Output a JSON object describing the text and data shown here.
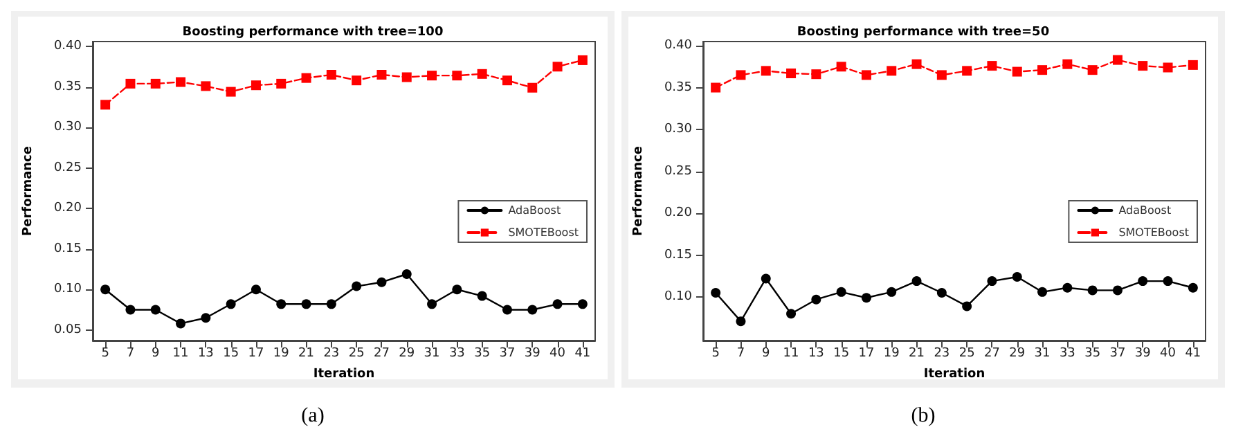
{
  "chart_data": [
    {
      "type": "line",
      "title": "Boosting performance with tree=100",
      "xlabel": "Iteration",
      "ylabel": "Performance",
      "annotations": [
        "(a)"
      ],
      "categories": [
        "5",
        "7",
        "9",
        "11",
        "13",
        "15",
        "17",
        "19",
        "21",
        "23",
        "25",
        "27",
        "29",
        "31",
        "33",
        "35",
        "37",
        "39",
        "40",
        "41"
      ],
      "ylim": [
        0.037,
        0.406
      ],
      "yticks": [
        0.05,
        {
          "value": 0.1,
          "label": "0.10"
        },
        0.15,
        {
          "value": 0.2,
          "label": "0.20"
        },
        0.25,
        {
          "value": 0.3,
          "label": "0.30"
        },
        0.35,
        {
          "value": 0.4,
          "label": "0.40"
        }
      ],
      "grid": false,
      "legend": "right",
      "series": [
        {
          "name": "AdaBoost",
          "color": "#000000",
          "marker": "circle",
          "line_style": "solid",
          "values": [
            0.1,
            0.075,
            0.075,
            0.058,
            0.065,
            0.082,
            0.1,
            0.082,
            0.082,
            0.082,
            0.104,
            0.109,
            0.119,
            0.082,
            0.1,
            0.092,
            0.075,
            0.075,
            0.082,
            0.082
          ]
        },
        {
          "name": "SMOTEBoost",
          "color": "#ff0000",
          "marker": "square",
          "line_style": "dashed",
          "values": [
            0.328,
            0.354,
            0.354,
            0.356,
            0.351,
            0.344,
            0.352,
            0.354,
            0.361,
            0.365,
            0.358,
            0.365,
            0.362,
            0.364,
            0.364,
            0.366,
            0.358,
            0.349,
            0.375,
            0.383
          ]
        }
      ]
    },
    {
      "type": "line",
      "title": "Boosting performance with tree=50",
      "xlabel": "Iteration",
      "ylabel": "Performance",
      "annotations": [
        "(b)"
      ],
      "categories": [
        "5",
        "7",
        "9",
        "11",
        "13",
        "15",
        "17",
        "19",
        "21",
        "23",
        "25",
        "27",
        "29",
        "31",
        "33",
        "35",
        "37",
        "39",
        "40",
        "41"
      ],
      "ylim": [
        0.048,
        0.405
      ],
      "yticks": [
        {
          "value": 0.1,
          "label": "0.10"
        },
        0.15,
        {
          "value": 0.2,
          "label": "0.20"
        },
        0.25,
        {
          "value": 0.3,
          "label": "0.30"
        },
        0.35,
        {
          "value": 0.4,
          "label": "0.40"
        }
      ],
      "grid": false,
      "legend": "right",
      "series": [
        {
          "name": "AdaBoost",
          "color": "#000000",
          "marker": "circle",
          "line_style": "solid",
          "values": [
            0.105,
            0.071,
            0.122,
            0.08,
            0.097,
            0.106,
            0.099,
            0.106,
            0.119,
            0.105,
            0.089,
            0.119,
            0.124,
            0.106,
            0.111,
            0.108,
            0.108,
            0.119,
            0.119,
            0.111
          ]
        },
        {
          "name": "SMOTEBoost",
          "color": "#ff0000",
          "marker": "square",
          "line_style": "dashed",
          "values": [
            0.35,
            0.365,
            0.37,
            0.367,
            0.366,
            0.375,
            0.365,
            0.37,
            0.378,
            0.365,
            0.37,
            0.376,
            0.369,
            0.371,
            0.378,
            0.371,
            0.383,
            0.376,
            0.374,
            0.377
          ]
        }
      ]
    }
  ]
}
